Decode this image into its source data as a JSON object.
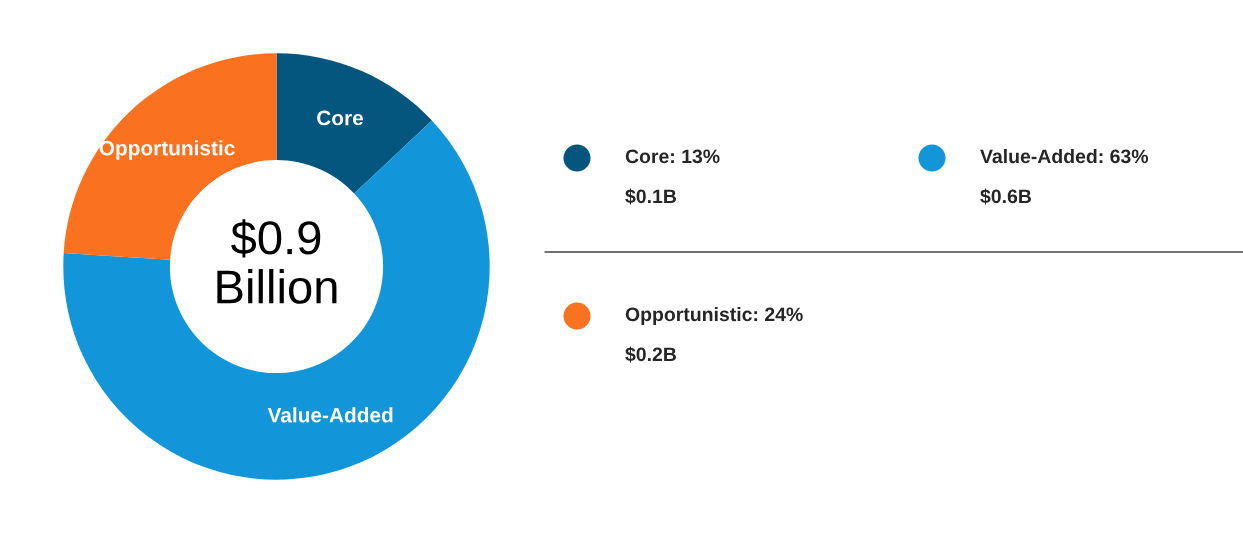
{
  "chart_data": {
    "type": "donut",
    "categories": [
      "Core",
      "Value-Added",
      "Opportunistic"
    ],
    "values": [
      13,
      63,
      24
    ],
    "colors": [
      "#04567f",
      "#1396d9",
      "#fa711f"
    ],
    "annotations": [
      "$0.9\nBillion",
      "Core: 13%",
      "$0.1B",
      "Value-Added: 63%",
      "$0.6B",
      "Opportunistic: 24%",
      "$0.2B"
    ]
  }
}
